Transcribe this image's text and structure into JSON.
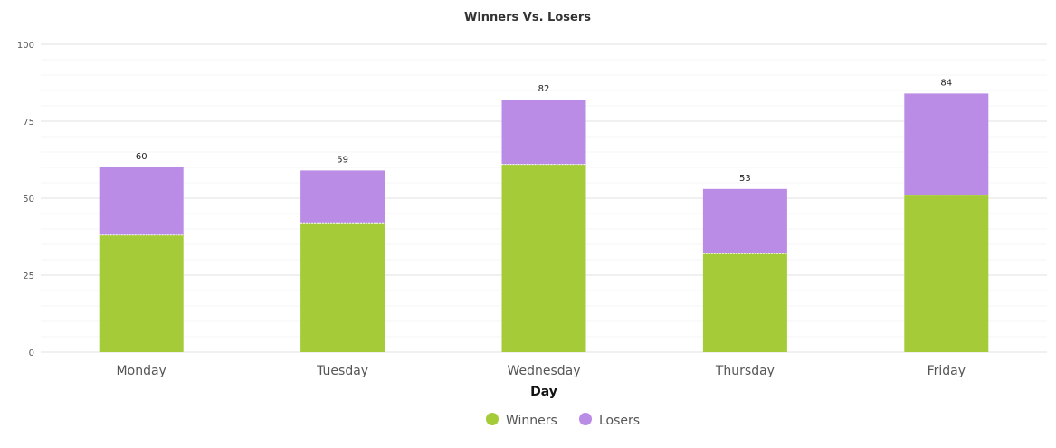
{
  "chart_data": {
    "type": "bar",
    "stacked": true,
    "title": "Winners Vs. Losers",
    "xlabel": "Day",
    "ylabel": "",
    "ylim": [
      0,
      100
    ],
    "yticks": [
      "0",
      "25",
      "50",
      "75",
      "100"
    ],
    "categories": [
      "Monday",
      "Tuesday",
      "Wednesday",
      "Thursday",
      "Friday"
    ],
    "series": [
      {
        "name": "Winners",
        "color": "#a5cb39",
        "values": [
          38,
          42,
          61,
          32,
          51
        ]
      },
      {
        "name": "Losers",
        "color": "#bb8ce6",
        "values": [
          22,
          17,
          21,
          21,
          33
        ]
      }
    ],
    "totals": [
      "60",
      "59",
      "82",
      "53",
      "84"
    ],
    "grid": true,
    "legend_position": "bottom-center"
  }
}
